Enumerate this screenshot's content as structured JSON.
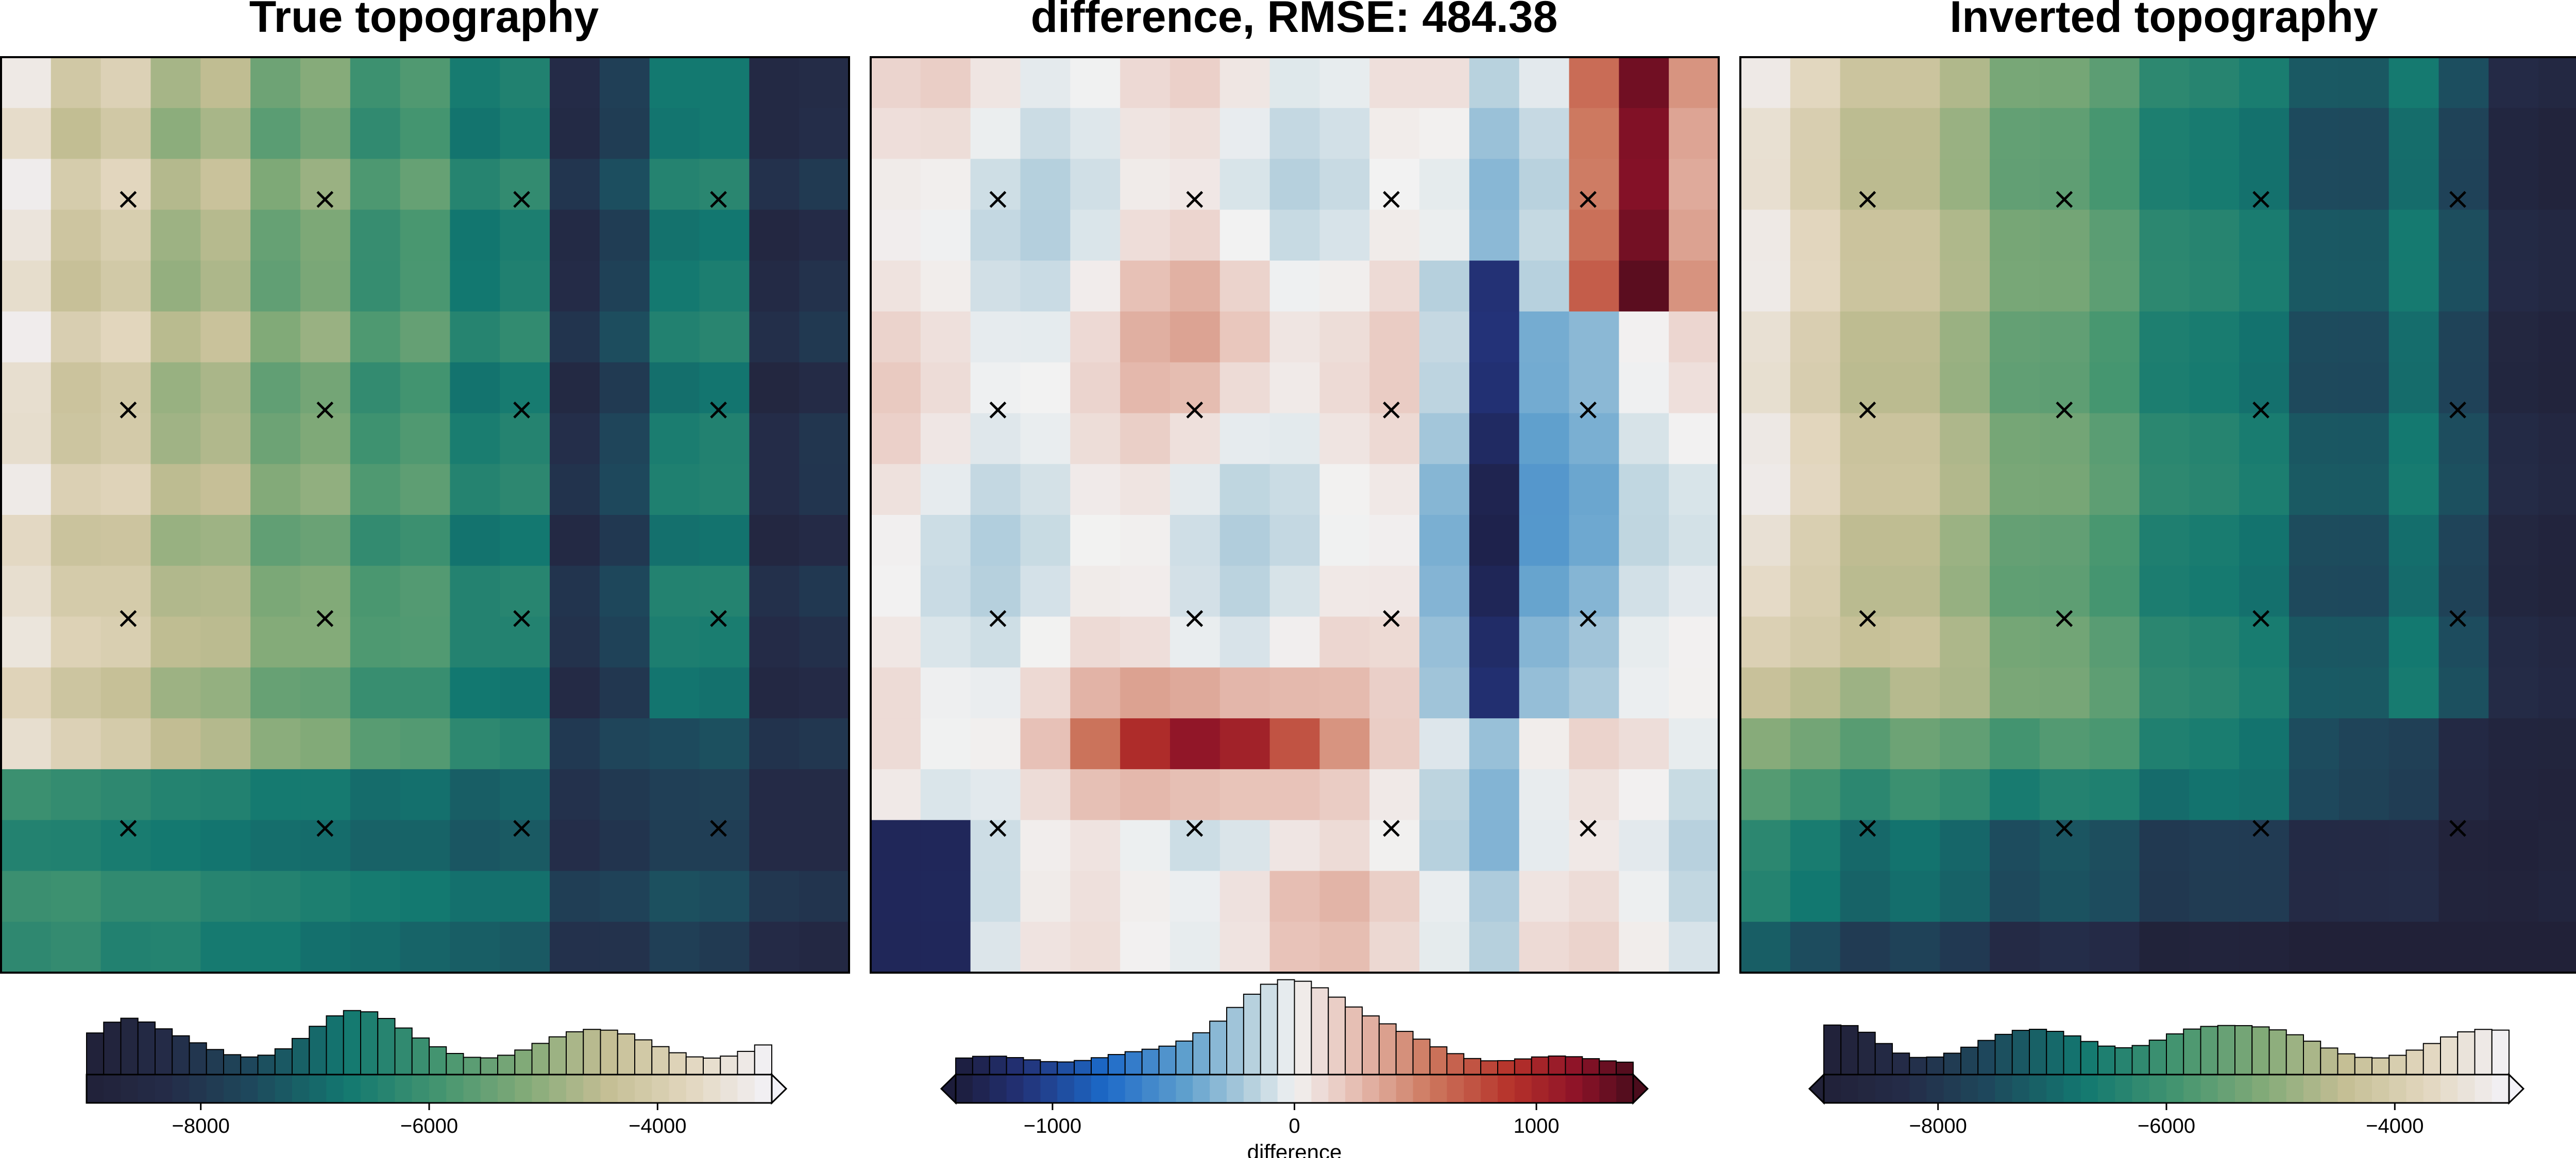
{
  "chart_data": [
    {
      "type": "heatmap",
      "title": "True topography",
      "grid_rows": 18,
      "grid_cols": 17,
      "colormap": "topography: dark navy (low) - teal - green - tan - white (high)",
      "value_range": [
        -9000,
        -3000
      ],
      "colorbar": {
        "ticks": [
          -8000,
          -6000,
          -4000
        ],
        "tick_labels": [
          "−8000",
          "−6000",
          "−4000"
        ],
        "label": "",
        "extend": "max",
        "histogram": true
      },
      "markers": {
        "symbol": "×",
        "x_frac": [
          0.15,
          0.382,
          0.614,
          0.846
        ],
        "y_frac": [
          0.156,
          0.386,
          0.614,
          0.843
        ]
      }
    },
    {
      "type": "heatmap",
      "title": "difference, RMSE: 484.38",
      "grid_rows": 18,
      "grid_cols": 17,
      "colormap": "diverging: dark navy - blue - light - white - salmon - red - dark red",
      "value_range": [
        -1400,
        1400
      ],
      "colorbar": {
        "ticks": [
          -1000,
          0,
          1000
        ],
        "tick_labels": [
          "−1000",
          "0",
          "1000"
        ],
        "label": "difference",
        "extend": "both",
        "histogram": true
      },
      "markers": {
        "symbol": "×",
        "x_frac": [
          0.15,
          0.382,
          0.614,
          0.846
        ],
        "y_frac": [
          0.156,
          0.386,
          0.614,
          0.843
        ]
      }
    },
    {
      "type": "heatmap",
      "title": "Inverted topography",
      "grid_rows": 18,
      "grid_cols": 17,
      "colormap": "topography: dark navy (low) - teal - green - tan - white (high)",
      "value_range": [
        -9000,
        -3000
      ],
      "colorbar": {
        "ticks": [
          -8000,
          -6000,
          -4000
        ],
        "tick_labels": [
          "−8000",
          "−6000",
          "−4000"
        ],
        "label": "",
        "extend": "both",
        "histogram": true
      },
      "markers": {
        "symbol": "×",
        "x_frac": [
          0.15,
          0.382,
          0.614,
          0.846
        ],
        "y_frac": [
          0.156,
          0.386,
          0.614,
          0.843
        ]
      }
    }
  ]
}
